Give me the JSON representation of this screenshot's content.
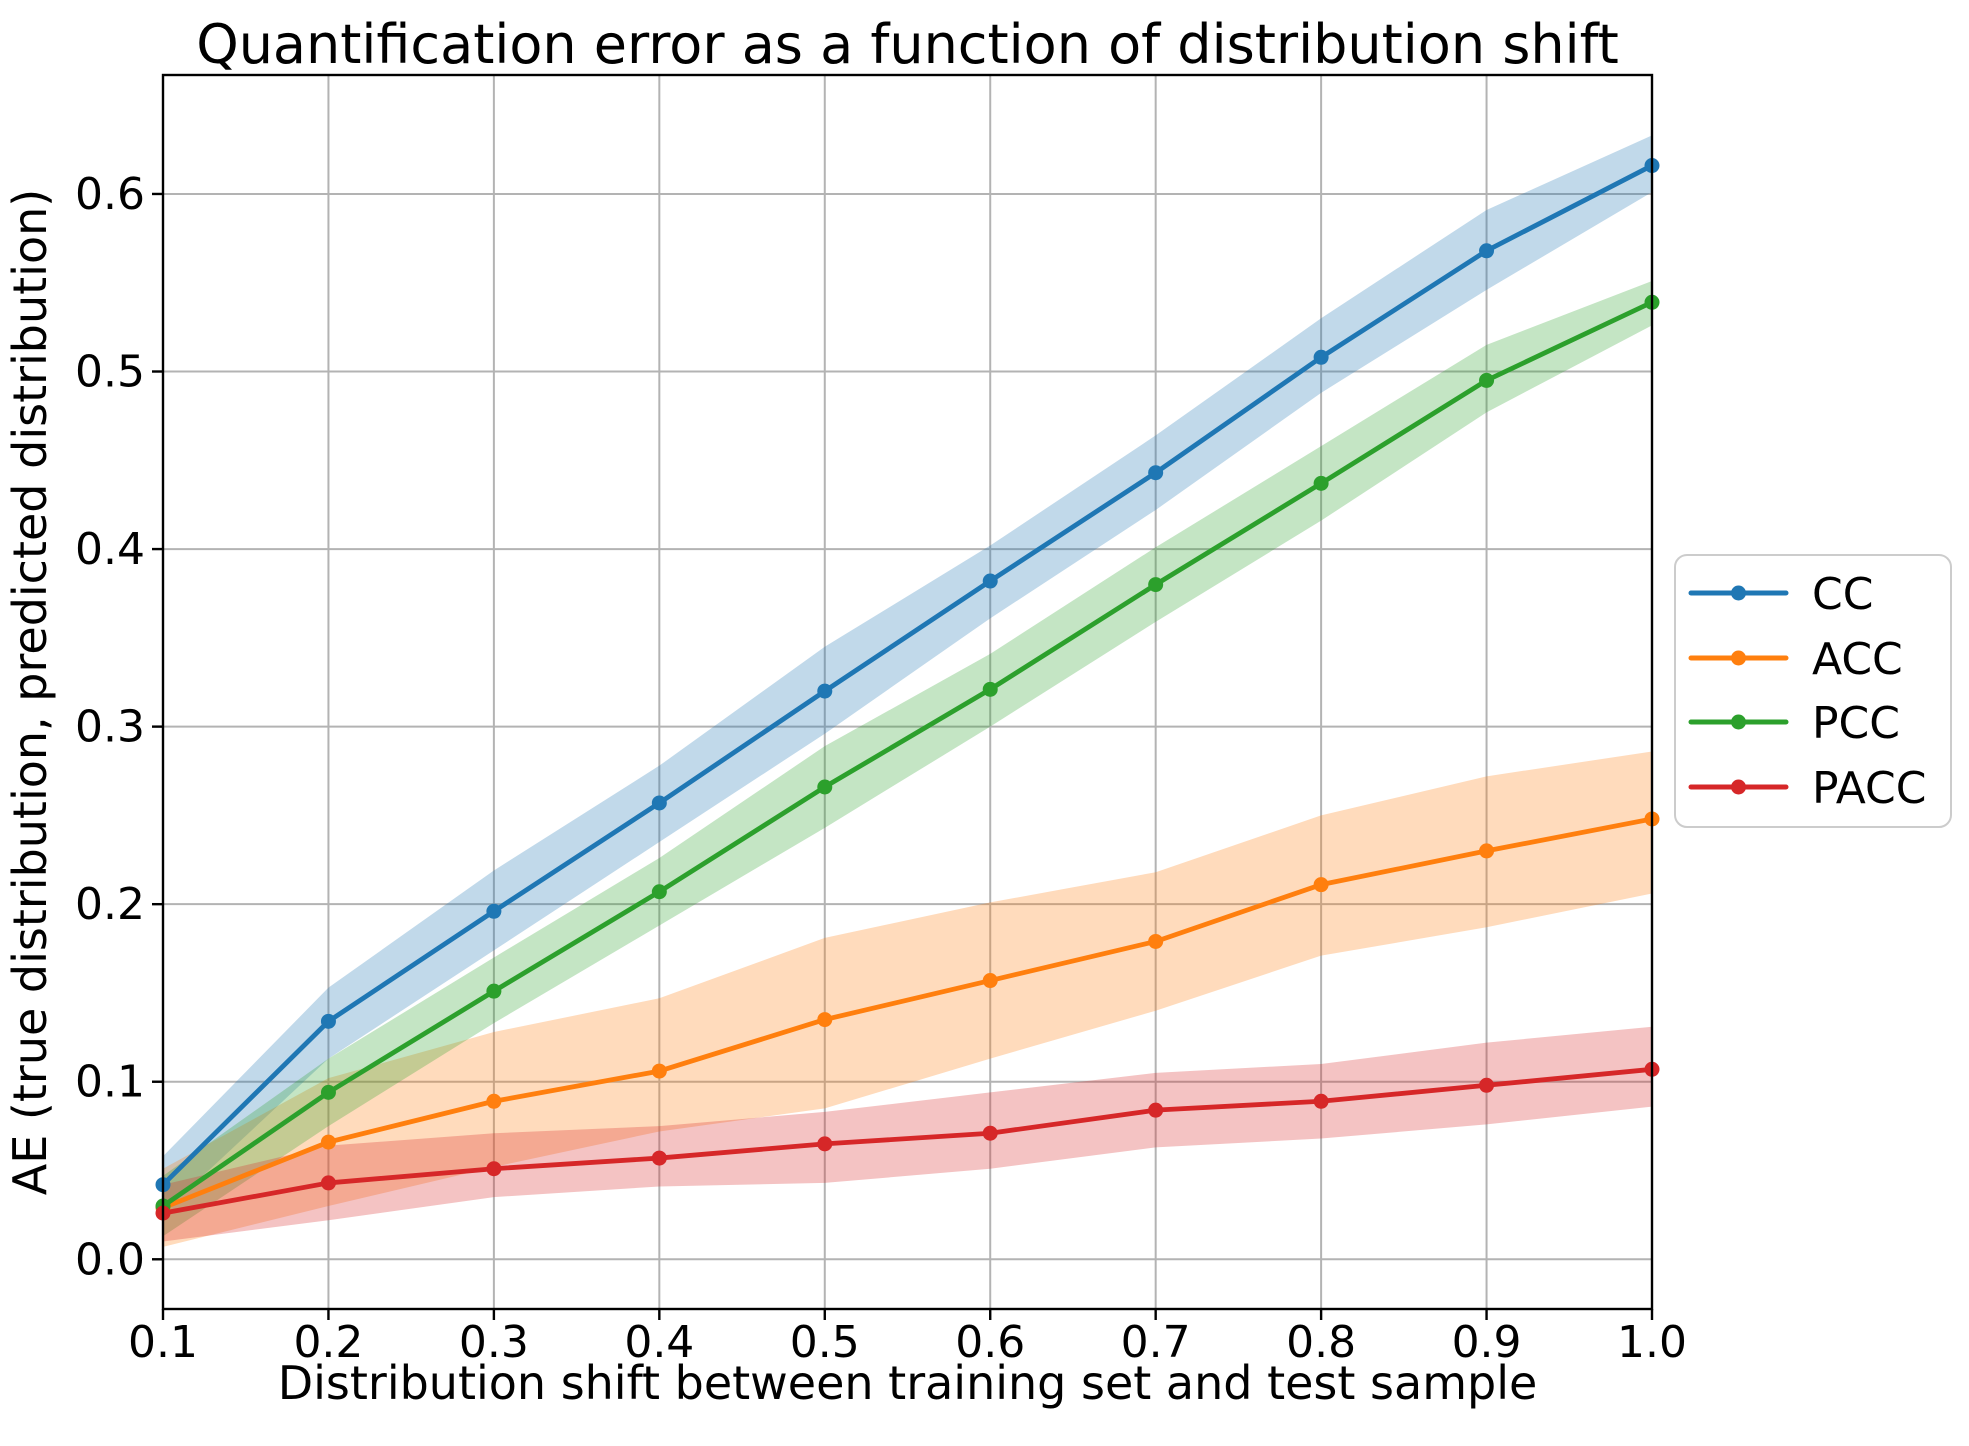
{
  "chart_data": {
    "type": "line",
    "title": "Quantification error as a function of distribution shift",
    "xlabel": "Distribution shift between training set and test sample",
    "ylabel": "AE (true distribution, predicted distribution)",
    "x": [
      0.1,
      0.2,
      0.3,
      0.4,
      0.5,
      0.6,
      0.7,
      0.8,
      0.9,
      1.0
    ],
    "xticks": [
      "0.1",
      "0.2",
      "0.3",
      "0.4",
      "0.5",
      "0.6",
      "0.7",
      "0.8",
      "0.9",
      "1.0"
    ],
    "yticks": [
      "0.0",
      "0.1",
      "0.2",
      "0.3",
      "0.4",
      "0.5",
      "0.6"
    ],
    "xlim": [
      0.1,
      1.0
    ],
    "ylim": [
      -0.028,
      0.667
    ],
    "grid": true,
    "grid_color": "#b3b3b3",
    "legend_position": "right-outside",
    "band_opacity": 0.28,
    "series": [
      {
        "name": "CC",
        "color": "#1f77b4",
        "values": [
          0.042,
          0.134,
          0.196,
          0.257,
          0.32,
          0.382,
          0.443,
          0.508,
          0.568,
          0.616
        ],
        "band_lower": [
          0.026,
          0.113,
          0.174,
          0.235,
          0.296,
          0.361,
          0.422,
          0.488,
          0.546,
          0.601
        ],
        "band_upper": [
          0.058,
          0.153,
          0.219,
          0.278,
          0.345,
          0.402,
          0.464,
          0.53,
          0.591,
          0.633
        ]
      },
      {
        "name": "ACC",
        "color": "#ff7f0e",
        "values": [
          0.029,
          0.066,
          0.089,
          0.106,
          0.135,
          0.157,
          0.179,
          0.211,
          0.23,
          0.248
        ],
        "band_lower": [
          0.007,
          0.03,
          0.052,
          0.072,
          0.085,
          0.113,
          0.14,
          0.171,
          0.187,
          0.206
        ],
        "band_upper": [
          0.051,
          0.102,
          0.128,
          0.147,
          0.181,
          0.201,
          0.218,
          0.25,
          0.272,
          0.286
        ]
      },
      {
        "name": "PCC",
        "color": "#2ca02c",
        "values": [
          0.03,
          0.094,
          0.151,
          0.207,
          0.266,
          0.321,
          0.38,
          0.437,
          0.495,
          0.539
        ],
        "band_lower": [
          0.013,
          0.075,
          0.133,
          0.188,
          0.243,
          0.3,
          0.359,
          0.416,
          0.477,
          0.526
        ],
        "band_upper": [
          0.047,
          0.113,
          0.17,
          0.226,
          0.289,
          0.341,
          0.401,
          0.458,
          0.515,
          0.551
        ]
      },
      {
        "name": "PACC",
        "color": "#d62728",
        "values": [
          0.026,
          0.043,
          0.051,
          0.057,
          0.065,
          0.071,
          0.084,
          0.089,
          0.098,
          0.107
        ],
        "band_lower": [
          0.01,
          0.022,
          0.035,
          0.041,
          0.043,
          0.051,
          0.063,
          0.068,
          0.076,
          0.086
        ],
        "band_upper": [
          0.042,
          0.064,
          0.071,
          0.075,
          0.083,
          0.094,
          0.105,
          0.11,
          0.122,
          0.131
        ]
      }
    ]
  }
}
